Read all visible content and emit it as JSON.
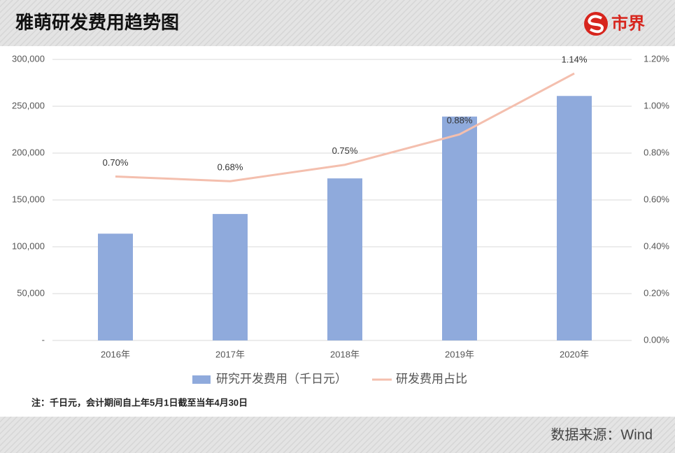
{
  "chart_data": {
    "type": "bar",
    "title": "雅萌研发费用趋势图",
    "logo": "市界",
    "note": "注：千日元，会计期间自上年5月1日截至当年4月30日",
    "source": "数据来源：Wind",
    "categories": [
      "2016年",
      "2017年",
      "2018年",
      "2019年",
      "2020年"
    ],
    "series": [
      {
        "name": "研究开发费用（千日元）",
        "type": "bar",
        "color": "#8faadc",
        "values": [
          114000,
          135000,
          173000,
          239000,
          261000
        ]
      },
      {
        "name": "研发费用占比",
        "type": "line",
        "axis": "y2",
        "color": "#f4bfae",
        "values": [
          0.7,
          0.68,
          0.75,
          0.88,
          1.14
        ],
        "value_labels": [
          "0.70%",
          "0.68%",
          "0.75%",
          "0.88%",
          "1.14%"
        ]
      }
    ],
    "ylim": [
      0,
      300000
    ],
    "yticks": [
      {
        "value": 0,
        "label": "-"
      },
      {
        "value": 50000,
        "label": "50,000"
      },
      {
        "value": 100000,
        "label": "100,000"
      },
      {
        "value": 150000,
        "label": "150,000"
      },
      {
        "value": 200000,
        "label": "200,000"
      },
      {
        "value": 250000,
        "label": "250,000"
      },
      {
        "value": 300000,
        "label": "300,000"
      }
    ],
    "y2lim": [
      0,
      1.2
    ],
    "y2ticks": [
      {
        "value": 0,
        "label": "0.00%"
      },
      {
        "value": 0.2,
        "label": "0.20%"
      },
      {
        "value": 0.4,
        "label": "0.40%"
      },
      {
        "value": 0.6,
        "label": "0.60%"
      },
      {
        "value": 0.8,
        "label": "0.80%"
      },
      {
        "value": 1.0,
        "label": "1.00%"
      },
      {
        "value": 1.2,
        "label": "1.20%"
      }
    ],
    "grid": true
  }
}
